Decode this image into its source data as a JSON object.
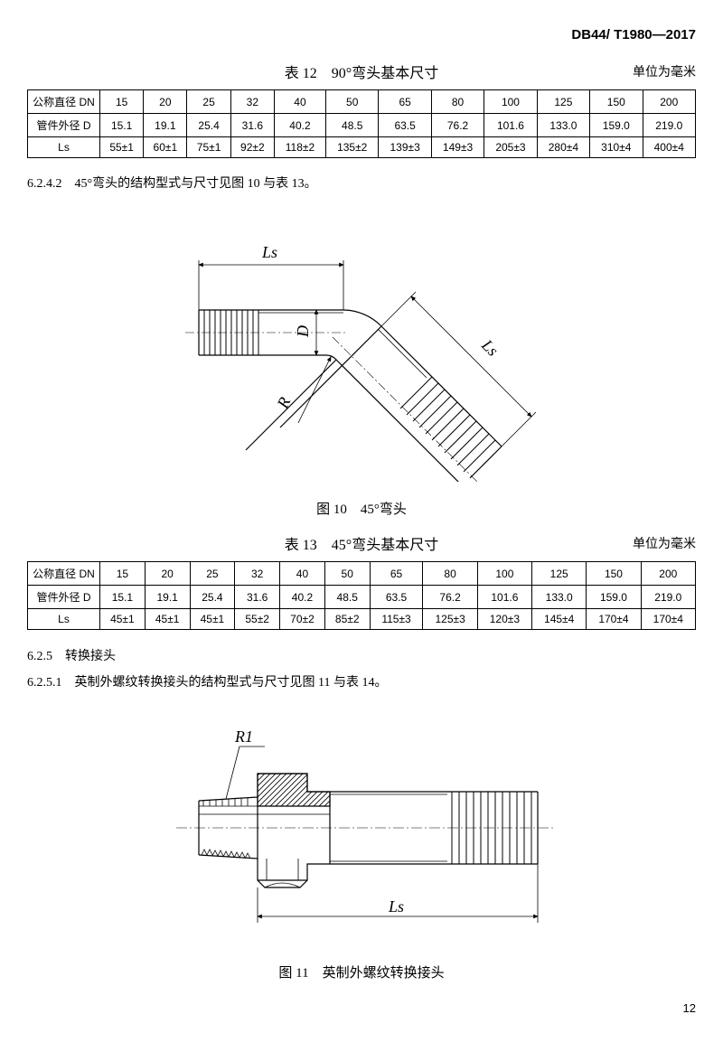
{
  "header_code": "DB44/ T1980—2017",
  "table12": {
    "title": "表 12　90°弯头基本尺寸",
    "unit": "单位为毫米",
    "rows": [
      [
        "公称直径 DN",
        "15",
        "20",
        "25",
        "32",
        "40",
        "50",
        "65",
        "80",
        "100",
        "125",
        "150",
        "200"
      ],
      [
        "管件外径 D",
        "15.1",
        "19.1",
        "25.4",
        "31.6",
        "40.2",
        "48.5",
        "63.5",
        "76.2",
        "101.6",
        "133.0",
        "159.0",
        "219.0"
      ],
      [
        "Ls",
        "55±1",
        "60±1",
        "75±1",
        "92±2",
        "118±2",
        "135±2",
        "139±3",
        "149±3",
        "205±3",
        "280±4",
        "310±4",
        "400±4"
      ]
    ]
  },
  "section_6242": "6.2.4.2　45°弯头的结构型式与尺寸见图 10 与表 13。",
  "figure10": {
    "caption": "图 10　45°弯头",
    "labels": {
      "ls": "Ls",
      "d": "D",
      "r": "R"
    }
  },
  "table13": {
    "title": "表 13　45°弯头基本尺寸",
    "unit": "单位为毫米",
    "rows": [
      [
        "公称直径 DN",
        "15",
        "20",
        "25",
        "32",
        "40",
        "50",
        "65",
        "80",
        "100",
        "125",
        "150",
        "200"
      ],
      [
        "管件外径 D",
        "15.1",
        "19.1",
        "25.4",
        "31.6",
        "40.2",
        "48.5",
        "63.5",
        "76.2",
        "101.6",
        "133.0",
        "159.0",
        "219.0"
      ],
      [
        "Ls",
        "45±1",
        "45±1",
        "45±1",
        "55±2",
        "70±2",
        "85±2",
        "115±3",
        "125±3",
        "120±3",
        "145±4",
        "170±4",
        "170±4"
      ]
    ]
  },
  "section_625": "6.2.5　转换接头",
  "section_6251": "6.2.5.1　英制外螺纹转换接头的结构型式与尺寸见图 11 与表 14。",
  "figure11": {
    "caption": "图 11　英制外螺纹转换接头",
    "labels": {
      "r1": "R1",
      "ls": "Ls"
    }
  },
  "page_number": "12"
}
